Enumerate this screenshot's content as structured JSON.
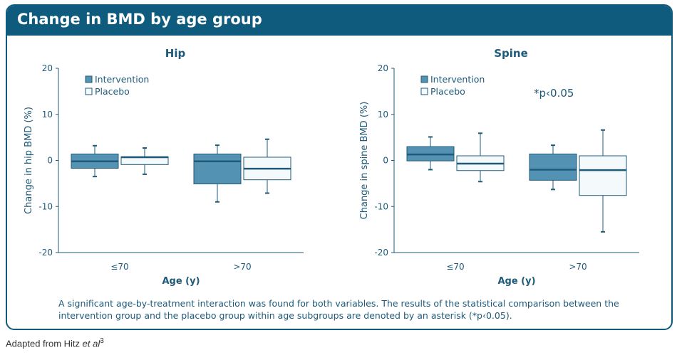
{
  "panel": {
    "title": "Change in BMD by age group",
    "footnote": "A significant age-by-treatment interaction was found for both variables. The results of the statistical comparison between the intervention group and the placebo group within age subgroups are denoted by an asterisk (*p‹0.05).",
    "source_text": "Adapted from Hitz ",
    "source_italic": "et al",
    "source_sup": "3"
  },
  "colors": {
    "header": "#0f5b7d",
    "intervention_fill": "#5492b4",
    "placebo_fill": "#f4f9fc",
    "stroke": "#1f5a78",
    "text": "#1e5a7a"
  },
  "chart_data": [
    {
      "type": "boxplot",
      "title": "Hip",
      "xlabel": "Age (y)",
      "ylabel": "Change in hip BMD (%)",
      "ylim": [
        -20,
        20
      ],
      "yticks": [
        20,
        10,
        0,
        -10,
        -20
      ],
      "categories": [
        "≤70",
        ">70"
      ],
      "legend": [
        "Intervention",
        "Placebo"
      ],
      "legend_placement": "top-left",
      "annotation": "",
      "series": [
        {
          "name": "Intervention",
          "boxes": [
            {
              "min": -3.5,
              "q1": -1.7,
              "median": -0.2,
              "q3": 1.4,
              "max": 3.2
            },
            {
              "min": -9.0,
              "q1": -5.1,
              "median": -0.2,
              "q3": 1.4,
              "max": 3.3
            }
          ]
        },
        {
          "name": "Placebo",
          "boxes": [
            {
              "min": -3.0,
              "q1": -0.9,
              "median": 0.7,
              "q3": 0.8,
              "max": 2.7
            },
            {
              "min": -7.1,
              "q1": -4.2,
              "median": -1.8,
              "q3": 0.7,
              "max": 4.6
            }
          ]
        }
      ]
    },
    {
      "type": "boxplot",
      "title": "Spine",
      "xlabel": "Age (y)",
      "ylabel": "Change in spine BMD (%)",
      "ylim": [
        -20,
        20
      ],
      "yticks": [
        20,
        10,
        0,
        -10,
        -20
      ],
      "categories": [
        "≤70",
        ">70"
      ],
      "legend": [
        "Intervention",
        "Placebo"
      ],
      "legend_placement": "top-left",
      "annotation": "*p‹0.05",
      "series": [
        {
          "name": "Intervention",
          "boxes": [
            {
              "min": -2.0,
              "q1": -0.1,
              "median": 1.3,
              "q3": 3.0,
              "max": 5.1
            },
            {
              "min": -6.3,
              "q1": -4.3,
              "median": -2.0,
              "q3": 1.4,
              "max": 3.3
            }
          ]
        },
        {
          "name": "Placebo",
          "boxes": [
            {
              "min": -4.6,
              "q1": -2.2,
              "median": -0.7,
              "q3": 1.0,
              "max": 5.9
            },
            {
              "min": -15.5,
              "q1": -7.6,
              "median": -2.1,
              "q3": 1.0,
              "max": 6.6
            }
          ]
        }
      ]
    }
  ]
}
